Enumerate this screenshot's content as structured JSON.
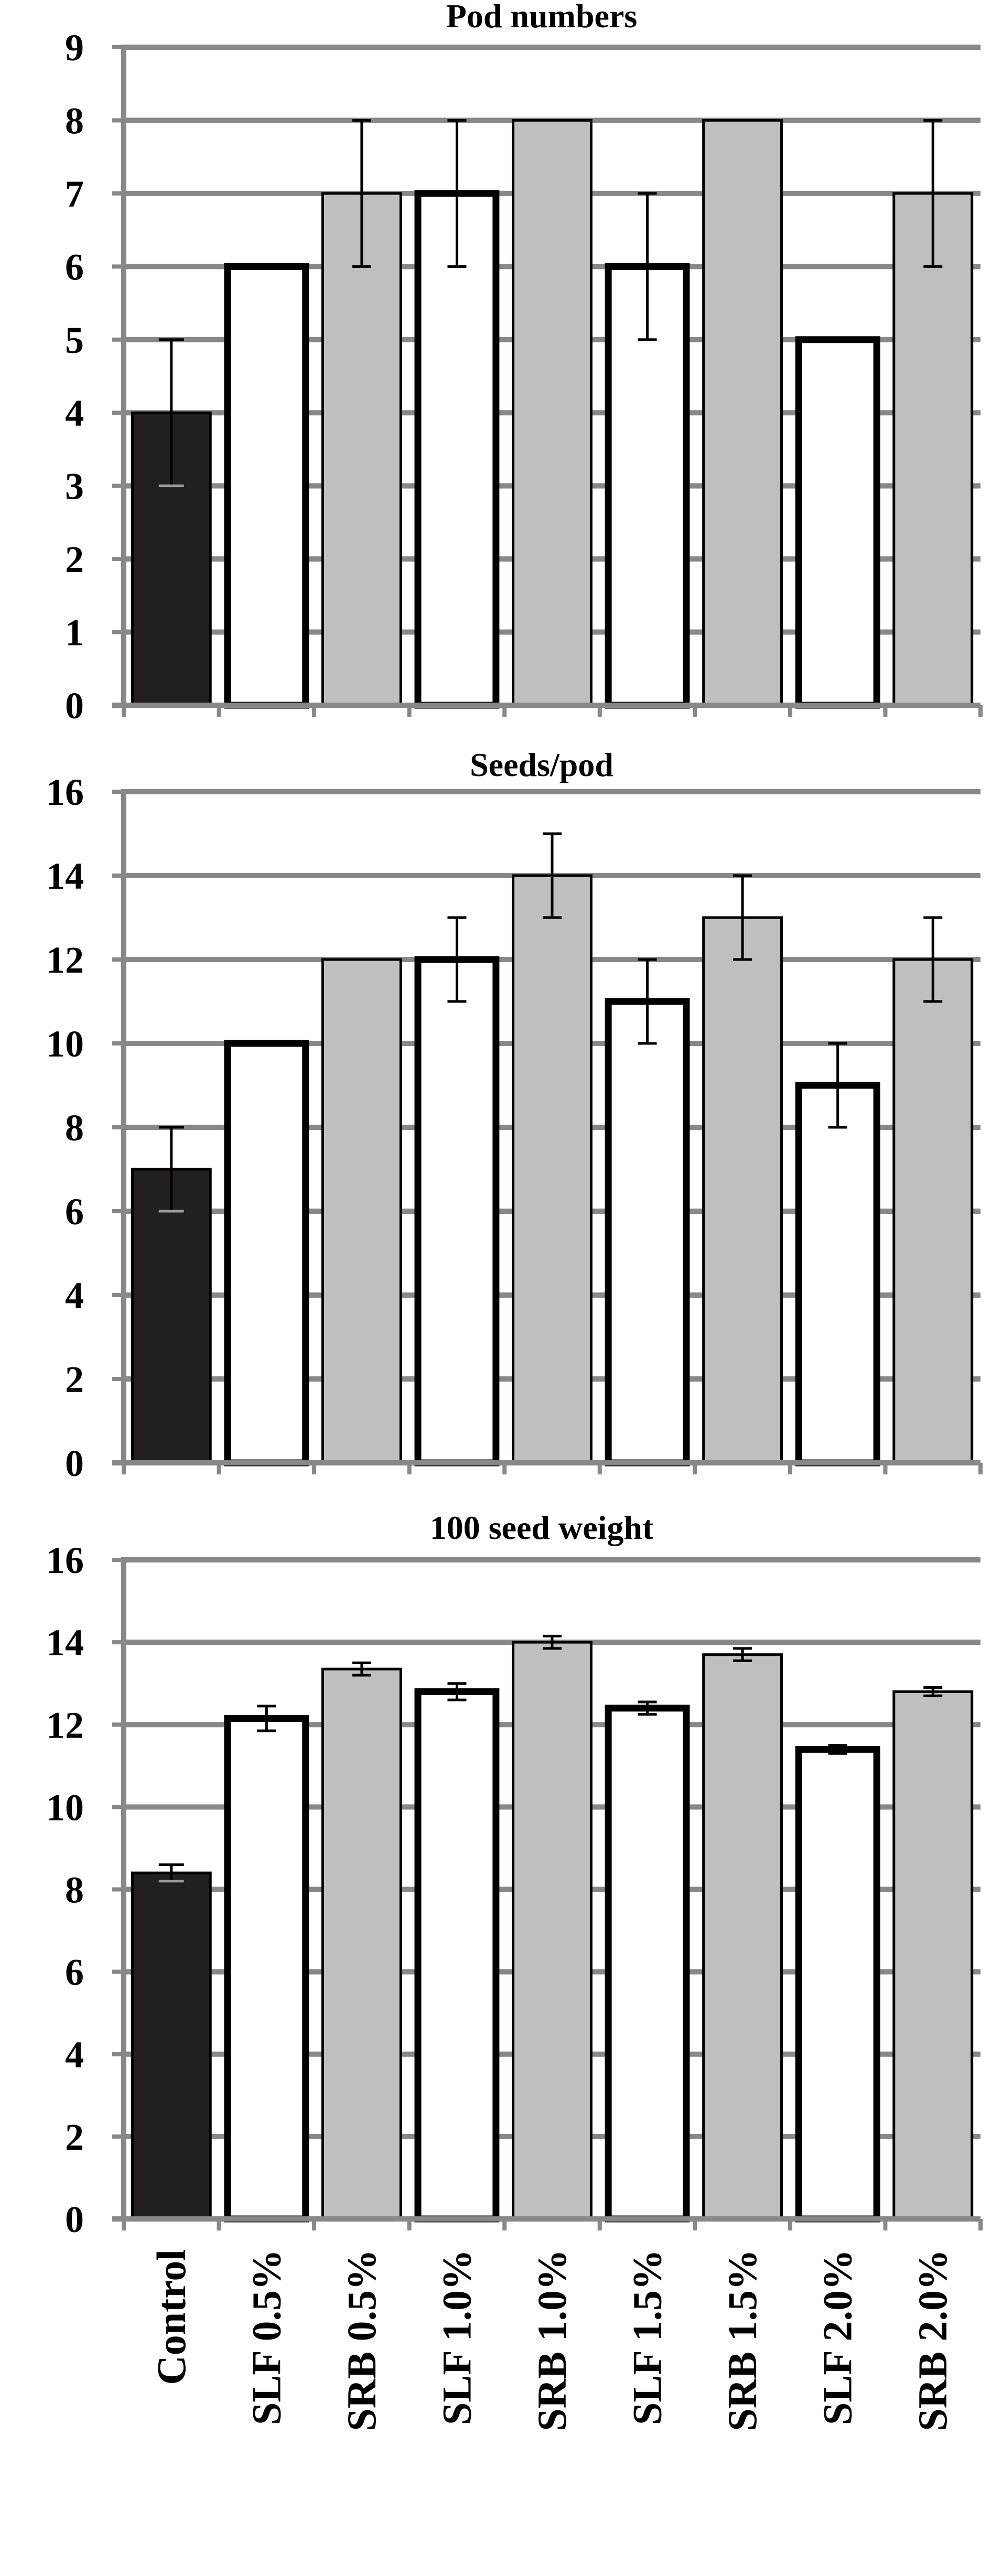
{
  "chart_data": {
    "type": "bar",
    "categories": [
      "Control",
      "SLF 0.5%",
      "SRB 0.5%",
      "SLF 1.0%",
      "SRB 1.0%",
      "SLF 1.5%",
      "SRB 1.5%",
      "SLF 2.0%",
      "SRB 2.0%"
    ],
    "bar_colors": [
      "#231f20",
      "#ffffff",
      "#bfbfbf",
      "#ffffff",
      "#bfbfbf",
      "#ffffff",
      "#bfbfbf",
      "#ffffff",
      "#bfbfbf"
    ],
    "gridline_color": "#888888",
    "grid": true,
    "panels": [
      {
        "title": "Pod numbers",
        "ylim": [
          0,
          9
        ],
        "yticks": [
          "0",
          "1",
          "2",
          "3",
          "4",
          "5",
          "6",
          "7",
          "8",
          "9"
        ],
        "values": [
          4,
          6,
          7,
          7,
          8,
          6,
          8,
          5,
          7
        ],
        "errors": [
          1,
          0,
          1,
          1,
          0,
          1,
          0,
          0,
          1
        ]
      },
      {
        "title": "Seeds/pod",
        "ylim": [
          0,
          16
        ],
        "yticks": [
          "0",
          "2",
          "4",
          "6",
          "8",
          "10",
          "12",
          "14",
          "16"
        ],
        "values": [
          7,
          10,
          12,
          12,
          14,
          11,
          13,
          9,
          12
        ],
        "errors": [
          1,
          0,
          0,
          1,
          1,
          1,
          1,
          1,
          1
        ]
      },
      {
        "title": "100 seed weight",
        "ylim": [
          0,
          16
        ],
        "yticks": [
          "0",
          "2",
          "4",
          "6",
          "8",
          "10",
          "12",
          "14",
          "16"
        ],
        "values": [
          8.4,
          12.15,
          13.35,
          12.8,
          14.0,
          12.4,
          13.7,
          11.4,
          12.8
        ],
        "errors": [
          0.2,
          0.3,
          0.15,
          0.2,
          0.15,
          0.15,
          0.15,
          0.1,
          0.1
        ]
      }
    ]
  }
}
